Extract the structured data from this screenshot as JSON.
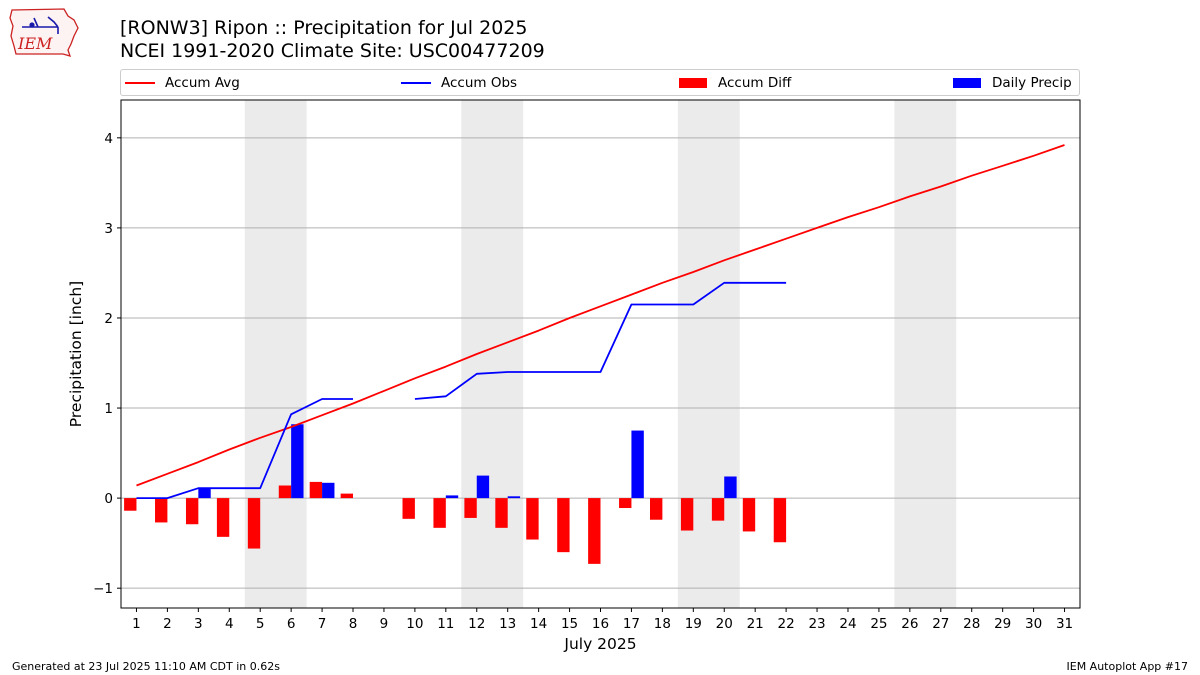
{
  "header": {
    "title_line1": "[RONW3] Ripon :: Precipitation for Jul 2025",
    "title_line2": "NCEI 1991-2020 Climate Site: USC00477209"
  },
  "logo": {
    "text": "IEM",
    "icon": "iem-iowa-logo",
    "color": "#cc2222"
  },
  "footer": {
    "left": "Generated at 23 Jul 2025 11:10 AM CDT in 0.62s",
    "right": "IEM Autoplot App #17"
  },
  "chart_data": {
    "type": "bar",
    "title": "[RONW3] Ripon :: Precipitation for Jul 2025",
    "subtitle": "NCEI 1991-2020 Climate Site: USC00477209",
    "xlabel": "July 2025",
    "ylabel": "Precipitation [inch]",
    "xlim": [
      0.5,
      31.5
    ],
    "ylim": [
      -1.22,
      4.42
    ],
    "yticks": [
      -1,
      0,
      1,
      2,
      3,
      4
    ],
    "ytick_labels": [
      "−1",
      "0",
      "1",
      "2",
      "3",
      "4"
    ],
    "xticks": [
      1,
      2,
      3,
      4,
      5,
      6,
      7,
      8,
      9,
      10,
      11,
      12,
      13,
      14,
      15,
      16,
      17,
      18,
      19,
      20,
      21,
      22,
      23,
      24,
      25,
      26,
      27,
      28,
      29,
      30,
      31
    ],
    "grid": "y",
    "legend_position": "top",
    "weekend_shading": [
      [
        4.5,
        6.5
      ],
      [
        11.5,
        13.5
      ],
      [
        18.5,
        20.5
      ],
      [
        25.5,
        27.5
      ]
    ],
    "colors": {
      "accum_avg": "#ff0000",
      "accum_obs": "#0000ff",
      "accum_diff": "#ff0000",
      "daily_precip": "#0000ff",
      "weekend": "#ebebeb",
      "grid": "#b0b0b0"
    },
    "series": [
      {
        "name": "Accum Avg",
        "kind": "line",
        "x": [
          1,
          2,
          3,
          4,
          5,
          6,
          7,
          8,
          9,
          10,
          11,
          12,
          13,
          14,
          15,
          16,
          17,
          18,
          19,
          20,
          21,
          22,
          23,
          24,
          25,
          26,
          27,
          28,
          29,
          30,
          31
        ],
        "values": [
          0.14,
          0.27,
          0.4,
          0.54,
          0.67,
          0.79,
          0.92,
          1.05,
          1.19,
          1.33,
          1.46,
          1.6,
          1.73,
          1.86,
          2.0,
          2.13,
          2.26,
          2.39,
          2.51,
          2.64,
          2.76,
          2.88,
          3.0,
          3.12,
          3.23,
          3.35,
          3.46,
          3.58,
          3.69,
          3.8,
          3.92
        ]
      },
      {
        "name": "Accum Obs",
        "kind": "line",
        "x": [
          1,
          2,
          3,
          4,
          5,
          6,
          7,
          8,
          9,
          10,
          11,
          12,
          13,
          14,
          15,
          16,
          17,
          18,
          19,
          20,
          21,
          22
        ],
        "values": [
          0.0,
          0.0,
          0.11,
          0.11,
          0.11,
          0.93,
          1.1,
          1.1,
          null,
          1.1,
          1.13,
          1.38,
          1.4,
          1.4,
          1.4,
          1.4,
          2.15,
          2.15,
          2.15,
          2.39,
          2.39,
          2.39
        ]
      },
      {
        "name": "Accum Diff",
        "kind": "bar",
        "x": [
          1,
          2,
          3,
          4,
          5,
          6,
          7,
          8,
          10,
          11,
          12,
          13,
          14,
          15,
          16,
          17,
          18,
          19,
          20,
          21,
          22
        ],
        "values": [
          -0.14,
          -0.27,
          -0.29,
          -0.43,
          -0.56,
          0.14,
          0.18,
          0.05,
          -0.23,
          -0.33,
          -0.22,
          -0.33,
          -0.46,
          -0.6,
          -0.73,
          -0.11,
          -0.24,
          -0.36,
          -0.25,
          -0.37,
          -0.49
        ]
      },
      {
        "name": "Daily Precip",
        "kind": "bar",
        "x": [
          3,
          6,
          7,
          11,
          12,
          13,
          17,
          20
        ],
        "values": [
          0.11,
          0.82,
          0.17,
          0.03,
          0.25,
          0.02,
          0.75,
          0.24
        ]
      }
    ]
  }
}
